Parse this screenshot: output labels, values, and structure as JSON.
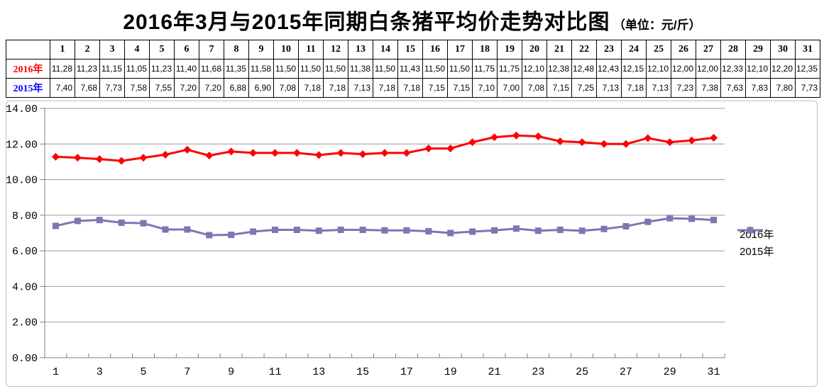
{
  "title": {
    "main": "2016年3月与2015年同期白条猪平均价走势对比图",
    "unit": "（单位：元/斤）"
  },
  "table": {
    "corner": "",
    "day_headers": [
      "1",
      "2",
      "3",
      "4",
      "5",
      "6",
      "7",
      "8",
      "9",
      "10",
      "11",
      "12",
      "13",
      "14",
      "15",
      "16",
      "17",
      "18",
      "19",
      "20",
      "21",
      "22",
      "23",
      "24",
      "25",
      "26",
      "27",
      "28",
      "29",
      "30",
      "31"
    ],
    "rows": [
      {
        "label": "2016年",
        "color": "#FF0000",
        "values": [
          "11,28",
          "11,23",
          "11,15",
          "11,05",
          "11,23",
          "11,40",
          "11,68",
          "11,35",
          "11,58",
          "11,50",
          "11,50",
          "11,50",
          "11,38",
          "11,50",
          "11,43",
          "11,50",
          "11,50",
          "11,75",
          "11,75",
          "12,10",
          "12,38",
          "12,48",
          "12,43",
          "12,15",
          "12,10",
          "12,00",
          "12,00",
          "12,33",
          "12,10",
          "12,20",
          "12,35"
        ]
      },
      {
        "label": "2015年",
        "color": "#0000FF",
        "values": [
          "7,40",
          "7,68",
          "7,73",
          "7,58",
          "7,55",
          "7,20",
          "7,20",
          "6,88",
          "6,90",
          "7,08",
          "7,18",
          "7,18",
          "7,13",
          "7,18",
          "7,18",
          "7,15",
          "7,15",
          "7,10",
          "7,00",
          "7,08",
          "7,15",
          "7,25",
          "7,13",
          "7,18",
          "7,13",
          "7,23",
          "7,38",
          "7,63",
          "7,83",
          "7,80",
          "7,73"
        ]
      }
    ]
  },
  "chart_data": {
    "type": "line",
    "title": "2016年3月与2015年同期白条猪平均价走势对比图",
    "unit": "元/斤",
    "x": [
      1,
      2,
      3,
      4,
      5,
      6,
      7,
      8,
      9,
      10,
      11,
      12,
      13,
      14,
      15,
      16,
      17,
      18,
      19,
      20,
      21,
      22,
      23,
      24,
      25,
      26,
      27,
      28,
      29,
      30,
      31
    ],
    "series": [
      {
        "name": "2016年",
        "color": "#FF0000",
        "marker": "diamond",
        "values": [
          11.28,
          11.23,
          11.15,
          11.05,
          11.23,
          11.4,
          11.68,
          11.35,
          11.58,
          11.5,
          11.5,
          11.5,
          11.38,
          11.5,
          11.43,
          11.5,
          11.5,
          11.75,
          11.75,
          12.1,
          12.38,
          12.48,
          12.43,
          12.15,
          12.1,
          12.0,
          12.0,
          12.33,
          12.1,
          12.2,
          12.35
        ]
      },
      {
        "name": "2015年",
        "color": "#7878B2",
        "marker": "square",
        "values": [
          7.4,
          7.68,
          7.73,
          7.58,
          7.55,
          7.2,
          7.2,
          6.88,
          6.9,
          7.08,
          7.18,
          7.18,
          7.13,
          7.18,
          7.18,
          7.15,
          7.15,
          7.1,
          7.0,
          7.08,
          7.15,
          7.25,
          7.13,
          7.18,
          7.13,
          7.23,
          7.38,
          7.63,
          7.83,
          7.8,
          7.73
        ]
      }
    ],
    "ylim": [
      0,
      14
    ],
    "yticks": [
      0,
      2,
      4,
      6,
      8,
      10,
      12,
      14
    ],
    "ytick_labels": [
      "0.00",
      "2.00",
      "4.00",
      "6.00",
      "8.00",
      "10.00",
      "12.00",
      "14.00"
    ],
    "xtick_labels": [
      "1",
      "3",
      "5",
      "7",
      "9",
      "11",
      "13",
      "15",
      "17",
      "19",
      "21",
      "23",
      "25",
      "27",
      "29",
      "31"
    ],
    "grid": true,
    "legend_position": "right",
    "grid_color": "#989898",
    "axis_color": "#808080"
  }
}
